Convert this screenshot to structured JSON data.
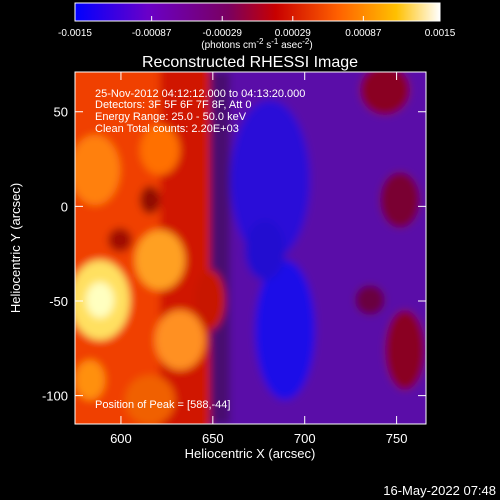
{
  "chart_data": [
    {
      "type": "colorbar",
      "ticks": [
        "-0.0015",
        "-0.00087",
        "-0.00029",
        "0.00029",
        "0.00087",
        "0.0015"
      ],
      "range": [
        -0.0015,
        0.0015
      ],
      "unit_label_prefix": "(photons cm",
      "unit_exp1": "-2",
      "unit_mid": " s",
      "unit_exp2": "-1",
      "unit_mid2": " asec",
      "unit_exp3": "-2",
      "unit_suffix": ")",
      "colors": [
        "#0000ff",
        "#6a00c8",
        "#7a0060",
        "#c80000",
        "#ff6000",
        "#ffc000",
        "#ffffff"
      ]
    },
    {
      "type": "heatmap",
      "title": "Reconstructed RHESSI Image",
      "xlabel": "Heliocentric X (arcsec)",
      "ylabel": "Heliocentric Y (arcsec)",
      "xlim": [
        575,
        766
      ],
      "ylim": [
        -115,
        71
      ],
      "xticks": [
        "600",
        "650",
        "700",
        "750"
      ],
      "yticks": [
        "50",
        "0",
        "-50",
        "-100"
      ],
      "annotations": [
        "25-Nov-2012 04:12:12.000 to 04:13:20.000",
        "Detectors: 3F 5F 6F 7F 8F, Att 0",
        "Energy Range: 25.0 - 50.0 keV",
        "Clean     Total counts: 2.20E+03"
      ],
      "peak_label": "Position of Peak = [588,-44]",
      "peak": [
        588,
        -44
      ]
    }
  ],
  "footer": {
    "date": "16-May-2022 07:48"
  }
}
